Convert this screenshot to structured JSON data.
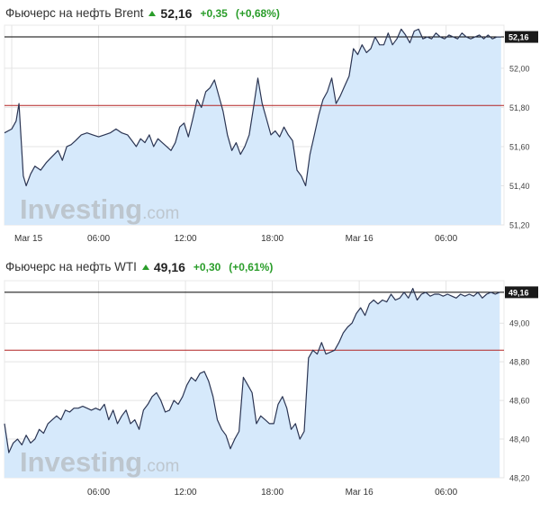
{
  "charts": [
    {
      "title": "Фьючерс на нефть Brent",
      "price": "52,16",
      "change": "+0,35",
      "change_pct": "(+0,68%)",
      "last_label": "52,16",
      "watermark_main": "Investing",
      "watermark_suffix": ".com"
    },
    {
      "title": "Фьючерс на нефть WTI",
      "price": "49,16",
      "change": "+0,30",
      "change_pct": "(+0,61%)",
      "last_label": "49,16",
      "watermark_main": "Investing",
      "watermark_suffix": ".com"
    }
  ],
  "colors": {
    "line": "#2b3553",
    "area": "#d6e9fb",
    "ref_line": "#b22222",
    "last_line": "#000000",
    "grid": "#e4e4e4",
    "up": "#2a9d2a"
  },
  "chart_data": [
    {
      "type": "area",
      "title": "Фьючерс на нефть Brent",
      "x_tick_labels": [
        "Mar 15",
        "06:00",
        "12:00",
        "18:00",
        "Mar 16",
        "06:00"
      ],
      "x_tick_hours": [
        0,
        6,
        12,
        18,
        24,
        30
      ],
      "xlim": [
        -0.5,
        34
      ],
      "y_ticks": [
        "52,00",
        "51,80",
        "51,60",
        "51,40",
        "51,20"
      ],
      "y_tick_values": [
        52.0,
        51.8,
        51.6,
        51.4,
        51.2
      ],
      "ylim": [
        51.2,
        52.22
      ],
      "reference_value": 51.81,
      "last_value": 52.16,
      "x": [
        -0.5,
        0.0,
        0.3,
        0.5,
        0.8,
        1.0,
        1.3,
        1.6,
        2.0,
        2.4,
        2.8,
        3.2,
        3.5,
        3.8,
        4.1,
        4.4,
        4.8,
        5.2,
        5.6,
        6.0,
        6.4,
        6.8,
        7.2,
        7.6,
        8.0,
        8.3,
        8.6,
        8.9,
        9.2,
        9.5,
        9.8,
        10.1,
        10.4,
        10.7,
        11.0,
        11.3,
        11.6,
        11.9,
        12.2,
        12.5,
        12.8,
        13.1,
        13.4,
        13.7,
        14.0,
        14.3,
        14.6,
        14.9,
        15.2,
        15.5,
        15.8,
        16.1,
        16.4,
        16.7,
        17.0,
        17.3,
        17.6,
        17.9,
        18.2,
        18.5,
        18.8,
        19.1,
        19.4,
        19.7,
        20.0,
        20.3,
        20.6,
        20.9,
        21.2,
        21.5,
        21.8,
        22.1,
        22.4,
        22.7,
        23.0,
        23.3,
        23.6,
        23.9,
        24.2,
        24.5,
        24.8,
        25.1,
        25.4,
        25.7,
        26.0,
        26.3,
        26.6,
        26.9,
        27.2,
        27.5,
        27.8,
        28.1,
        28.4,
        28.7,
        29.0,
        29.3,
        29.6,
        29.9,
        30.2,
        30.5,
        30.8,
        31.1,
        31.4,
        31.7,
        32.0,
        32.3,
        32.6,
        32.9,
        33.2,
        33.5,
        33.8
      ],
      "y": [
        51.67,
        51.69,
        51.73,
        51.82,
        51.45,
        51.4,
        51.46,
        51.5,
        51.48,
        51.52,
        51.55,
        51.58,
        51.53,
        51.6,
        51.61,
        51.63,
        51.66,
        51.67,
        51.66,
        51.65,
        51.66,
        51.67,
        51.69,
        51.67,
        51.66,
        51.63,
        51.6,
        51.64,
        51.62,
        51.66,
        51.6,
        51.64,
        51.62,
        51.6,
        51.58,
        51.62,
        51.7,
        51.72,
        51.65,
        51.74,
        51.84,
        51.8,
        51.88,
        51.9,
        51.94,
        51.86,
        51.78,
        51.66,
        51.58,
        51.62,
        51.56,
        51.6,
        51.66,
        51.8,
        51.95,
        51.82,
        51.74,
        51.66,
        51.68,
        51.65,
        51.7,
        51.66,
        51.63,
        51.48,
        51.45,
        51.4,
        51.56,
        51.66,
        51.76,
        51.84,
        51.88,
        51.95,
        51.82,
        51.86,
        51.91,
        51.96,
        52.1,
        52.07,
        52.12,
        52.08,
        52.1,
        52.16,
        52.12,
        52.12,
        52.18,
        52.12,
        52.15,
        52.2,
        52.17,
        52.13,
        52.19,
        52.2,
        52.15,
        52.16,
        52.15,
        52.18,
        52.16,
        52.15,
        52.17,
        52.16,
        52.15,
        52.18,
        52.16,
        52.15,
        52.16,
        52.17,
        52.15,
        52.17,
        52.15,
        52.16,
        52.16
      ]
    },
    {
      "type": "area",
      "title": "Фьючерс на нефть WTI",
      "x_tick_labels": [
        "06:00",
        "12:00",
        "18:00",
        "Mar 16",
        "06:00"
      ],
      "x_tick_hours": [
        6,
        12,
        18,
        24,
        30
      ],
      "xlim": [
        -0.5,
        34
      ],
      "y_ticks": [
        "49,00",
        "48,80",
        "48,60",
        "48,40",
        "48,20"
      ],
      "y_tick_values": [
        49.0,
        48.8,
        48.6,
        48.4,
        48.2
      ],
      "ylim": [
        48.2,
        49.22
      ],
      "reference_value": 48.86,
      "last_value": 49.16,
      "x": [
        -0.5,
        -0.2,
        0.1,
        0.4,
        0.7,
        1.0,
        1.3,
        1.6,
        1.9,
        2.2,
        2.5,
        2.8,
        3.1,
        3.4,
        3.7,
        4.0,
        4.3,
        4.6,
        4.9,
        5.2,
        5.5,
        5.8,
        6.1,
        6.4,
        6.7,
        7.0,
        7.3,
        7.6,
        7.9,
        8.2,
        8.5,
        8.8,
        9.1,
        9.4,
        9.7,
        10.0,
        10.3,
        10.6,
        10.9,
        11.2,
        11.5,
        11.8,
        12.1,
        12.4,
        12.7,
        13.0,
        13.3,
        13.6,
        13.9,
        14.2,
        14.5,
        14.8,
        15.1,
        15.4,
        15.7,
        16.0,
        16.3,
        16.6,
        16.9,
        17.2,
        17.5,
        17.8,
        18.1,
        18.4,
        18.7,
        19.0,
        19.3,
        19.6,
        19.9,
        20.2,
        20.5,
        20.8,
        21.1,
        21.4,
        21.7,
        22.0,
        22.3,
        22.6,
        22.9,
        23.2,
        23.5,
        23.8,
        24.1,
        24.4,
        24.7,
        25.0,
        25.3,
        25.6,
        25.9,
        26.2,
        26.5,
        26.8,
        27.1,
        27.4,
        27.7,
        28.0,
        28.3,
        28.6,
        28.9,
        29.2,
        29.5,
        29.8,
        30.1,
        30.4,
        30.7,
        31.0,
        31.3,
        31.6,
        31.9,
        32.2,
        32.5,
        32.8,
        33.1,
        33.4,
        33.7
      ],
      "y": [
        48.48,
        48.33,
        48.38,
        48.4,
        48.37,
        48.42,
        48.38,
        48.4,
        48.45,
        48.43,
        48.48,
        48.5,
        48.52,
        48.5,
        48.55,
        48.54,
        48.56,
        48.56,
        48.57,
        48.56,
        48.55,
        48.56,
        48.55,
        48.58,
        48.5,
        48.55,
        48.48,
        48.52,
        48.55,
        48.48,
        48.5,
        48.45,
        48.55,
        48.58,
        48.62,
        48.64,
        48.6,
        48.54,
        48.55,
        48.6,
        48.58,
        48.62,
        48.68,
        48.72,
        48.7,
        48.74,
        48.75,
        48.7,
        48.62,
        48.5,
        48.45,
        48.42,
        48.35,
        48.4,
        48.44,
        48.72,
        48.68,
        48.64,
        48.48,
        48.52,
        48.5,
        48.48,
        48.48,
        48.58,
        48.62,
        48.56,
        48.45,
        48.48,
        48.4,
        48.44,
        48.82,
        48.86,
        48.84,
        48.9,
        48.84,
        48.85,
        48.86,
        48.9,
        48.95,
        48.98,
        49.0,
        49.05,
        49.08,
        49.04,
        49.1,
        49.12,
        49.1,
        49.12,
        49.11,
        49.15,
        49.12,
        49.13,
        49.16,
        49.13,
        49.18,
        49.12,
        49.15,
        49.16,
        49.14,
        49.15,
        49.15,
        49.14,
        49.15,
        49.14,
        49.13,
        49.15,
        49.14,
        49.15,
        49.14,
        49.16,
        49.13,
        49.15,
        49.16,
        49.15,
        49.16
      ]
    }
  ]
}
